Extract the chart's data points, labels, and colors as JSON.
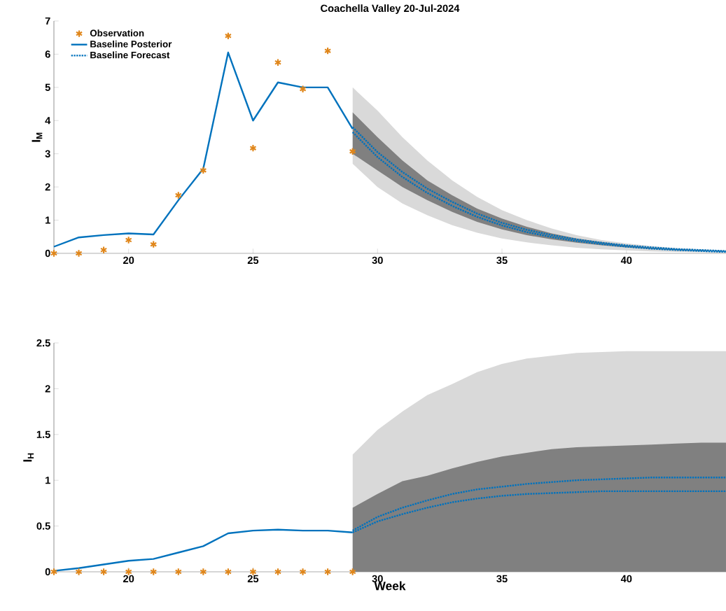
{
  "chart_data": [
    {
      "type": "line",
      "title": "Coachella Valley 20-Jul-2024",
      "ylabel": "I$_{M}$",
      "xlim": [
        17,
        44
      ],
      "xticks": [
        20,
        25,
        30,
        35,
        40
      ],
      "ylim": [
        0,
        7
      ],
      "yticks": [
        0,
        1,
        2,
        3,
        4,
        5,
        6,
        7
      ],
      "legend": "top left",
      "series": [
        {
          "type": "scatter",
          "name": "Observation",
          "color": "#e0861a",
          "marker": "cross",
          "x": [
            17,
            18,
            19,
            20,
            21,
            22,
            23,
            24,
            25,
            26,
            27,
            28,
            29
          ],
          "values": [
            0,
            0,
            0.1,
            0.4,
            0.27,
            1.75,
            2.5,
            6.55,
            3.17,
            5.75,
            4.95,
            6.1,
            3.07
          ]
        },
        {
          "name": "Baseline Posterior",
          "color": "#0072bd",
          "line_style": "solid",
          "x": [
            17,
            18,
            19,
            20,
            21,
            22,
            23,
            24,
            25,
            26,
            27,
            28,
            29
          ],
          "values": [
            0.2,
            0.48,
            0.55,
            0.6,
            0.57,
            1.6,
            2.55,
            6.05,
            4.0,
            5.15,
            5.0,
            5.0,
            3.75
          ]
        },
        {
          "name": "Baseline Forecast",
          "color": "#0072bd",
          "line_style": "dotted",
          "x": [
            29,
            30,
            31,
            32,
            33,
            34,
            35,
            36,
            37,
            38,
            39,
            40,
            41,
            42,
            43,
            44
          ],
          "values": [
            3.8,
            3.05,
            2.45,
            1.95,
            1.55,
            1.2,
            0.92,
            0.71,
            0.55,
            0.42,
            0.32,
            0.24,
            0.18,
            0.13,
            0.1,
            0.07
          ],
          "lower": [
            2.7,
            2.0,
            1.5,
            1.15,
            0.85,
            0.62,
            0.45,
            0.33,
            0.24,
            0.17,
            0.12,
            0.09,
            0.06,
            0.04,
            0.03,
            0.02
          ],
          "upper": [
            5.0,
            4.3,
            3.5,
            2.8,
            2.2,
            1.7,
            1.3,
            1.0,
            0.75,
            0.55,
            0.4,
            0.3,
            0.22,
            0.16,
            0.12,
            0.09
          ]
        },
        {
          "color": "#0072bd",
          "line_style": "dotted",
          "x": [
            29,
            30,
            31,
            32,
            33,
            34,
            35,
            36,
            37,
            38,
            39,
            40,
            41,
            42,
            43,
            44
          ],
          "values": [
            3.65,
            2.9,
            2.3,
            1.82,
            1.43,
            1.1,
            0.84,
            0.64,
            0.49,
            0.37,
            0.28,
            0.2,
            0.14,
            0.1,
            0.07,
            0.04
          ],
          "lower": [
            3.0,
            2.5,
            2.0,
            1.6,
            1.25,
            0.95,
            0.72,
            0.55,
            0.42,
            0.32,
            0.24,
            0.18,
            0.13,
            0.09,
            0.07,
            0.05
          ],
          "upper": [
            4.25,
            3.5,
            2.8,
            2.2,
            1.75,
            1.35,
            1.05,
            0.8,
            0.6,
            0.45,
            0.34,
            0.25,
            0.18,
            0.13,
            0.1,
            0.07
          ]
        }
      ]
    },
    {
      "type": "line",
      "xlabel": "Week",
      "ylabel": "I$_{H}$",
      "xlim": [
        17,
        44
      ],
      "xticks": [
        20,
        25,
        30,
        35,
        40
      ],
      "ylim": [
        0,
        2.5
      ],
      "yticks": [
        0,
        0.5,
        1,
        1.5,
        2,
        2.5
      ],
      "series": [
        {
          "type": "area",
          "color": "#d9d9d9",
          "x": [
            29,
            30,
            31,
            32,
            33,
            34,
            35,
            36,
            37,
            38,
            39,
            40,
            41,
            42,
            43,
            44
          ],
          "values": [
            1.28,
            1.55,
            1.75,
            1.93,
            2.05,
            2.18,
            2.27,
            2.33,
            2.36,
            2.39,
            2.4,
            2.41,
            2.41,
            2.41,
            2.41,
            2.41
          ]
        },
        {
          "type": "area",
          "color": "#808080",
          "x": [
            29,
            30,
            31,
            32,
            33,
            34,
            35,
            36,
            37,
            38,
            39,
            40,
            41,
            42,
            43,
            44
          ],
          "values": [
            0.7,
            0.85,
            0.99,
            1.05,
            1.13,
            1.2,
            1.26,
            1.3,
            1.34,
            1.36,
            1.37,
            1.38,
            1.39,
            1.4,
            1.41,
            1.41
          ]
        },
        {
          "type": "scatter",
          "color": "#e0861a",
          "marker": "cross",
          "x": [
            17,
            18,
            19,
            20,
            21,
            22,
            23,
            24,
            25,
            26,
            27,
            28,
            29
          ],
          "values": [
            0,
            0,
            0,
            0,
            0,
            0,
            0,
            0,
            0,
            0,
            0,
            0,
            0
          ]
        },
        {
          "color": "#0072bd",
          "line_style": "solid",
          "x": [
            17,
            18,
            19,
            20,
            21,
            22,
            23,
            24,
            25,
            26,
            27,
            28,
            29
          ],
          "values": [
            0.01,
            0.04,
            0.08,
            0.12,
            0.14,
            0.21,
            0.28,
            0.42,
            0.45,
            0.46,
            0.45,
            0.45,
            0.43
          ]
        },
        {
          "color": "#0072bd",
          "line_style": "dotted",
          "x": [
            29,
            30,
            31,
            32,
            33,
            34,
            35,
            36,
            37,
            38,
            39,
            40,
            41,
            42,
            43,
            44
          ],
          "values": [
            0.45,
            0.6,
            0.7,
            0.78,
            0.85,
            0.9,
            0.93,
            0.96,
            0.98,
            1.0,
            1.01,
            1.02,
            1.03,
            1.03,
            1.03,
            1.03
          ]
        },
        {
          "color": "#0072bd",
          "line_style": "dotted",
          "x": [
            29,
            30,
            31,
            32,
            33,
            34,
            35,
            36,
            37,
            38,
            39,
            40,
            41,
            42,
            43,
            44
          ],
          "values": [
            0.43,
            0.55,
            0.63,
            0.7,
            0.76,
            0.8,
            0.83,
            0.85,
            0.86,
            0.87,
            0.88,
            0.88,
            0.88,
            0.88,
            0.88,
            0.88
          ]
        }
      ]
    }
  ]
}
